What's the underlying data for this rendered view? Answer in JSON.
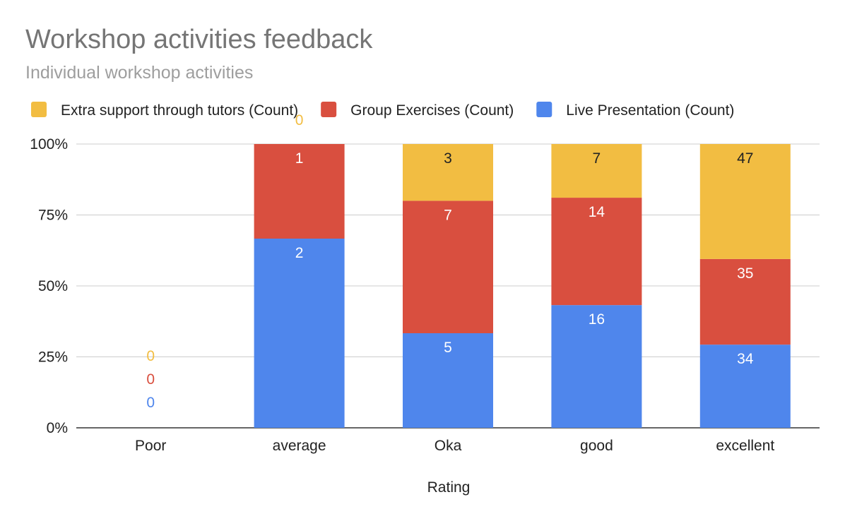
{
  "chart_data": {
    "type": "bar",
    "stacking": "percent",
    "title": "Workshop activities feedback",
    "subtitle": "Individual workshop activities",
    "xlabel": "Rating",
    "ylabel": "",
    "categories": [
      "Poor",
      "average",
      "Oka",
      "good",
      "excellent"
    ],
    "yticks": [
      "0%",
      "25%",
      "50%",
      "75%",
      "100%"
    ],
    "ylim": [
      0,
      100
    ],
    "grid": true,
    "legend_position": "top",
    "series": [
      {
        "name": "Live Presentation (Count)",
        "color": "#4f86ec",
        "values": [
          0,
          2,
          5,
          16,
          34
        ]
      },
      {
        "name": "Group Exercises (Count)",
        "color": "#d94f3f",
        "values": [
          0,
          1,
          7,
          14,
          35
        ]
      },
      {
        "name": "Extra support through tutors (Count)",
        "color": "#f2bd42",
        "values": [
          0,
          0,
          3,
          7,
          47
        ]
      }
    ],
    "legend_order": [
      2,
      1,
      0
    ]
  }
}
